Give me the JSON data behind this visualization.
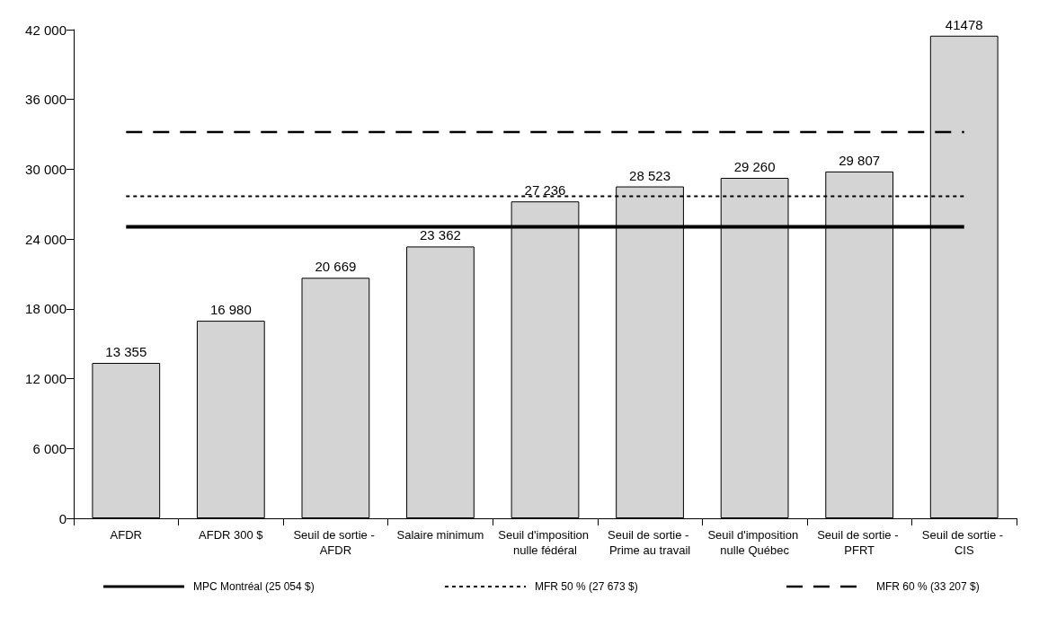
{
  "chart_data": {
    "type": "bar",
    "categories": [
      "AFDR",
      "AFDR 300 $",
      "Seuil de sortie - AFDR",
      "Salaire minimum",
      "Seuil d'imposition nulle fédéral",
      "Seuil de sortie - Prime au travail",
      "Seuil d'imposition nulle Québec",
      "Seuil de sortie - PFRT",
      "Seuil de sortie - CIS"
    ],
    "values": [
      13355,
      16980,
      20669,
      23362,
      27236,
      28523,
      29260,
      29807,
      41478
    ],
    "value_labels": [
      "13 355",
      "16 980",
      "20 669",
      "23 362",
      "27 236",
      "28 523",
      "29 260",
      "29 807",
      "41478"
    ],
    "color": "#d4d4d4",
    "ylim": [
      0,
      42000
    ],
    "yticks": [
      {
        "value": 0,
        "label": "0"
      },
      {
        "value": 6000,
        "label": "6 000"
      },
      {
        "value": 12000,
        "label": "12 000"
      },
      {
        "value": 18000,
        "label": "18 000"
      },
      {
        "value": 24000,
        "label": "24 000"
      },
      {
        "value": 30000,
        "label": "30 000"
      },
      {
        "value": 36000,
        "label": "36 000"
      },
      {
        "value": 42000,
        "label": "42 000"
      }
    ],
    "ref_lines": [
      {
        "axis": "y",
        "value": 25054,
        "label": "MPC Montréal (25 054 $)",
        "color": "#000000",
        "line_style": "solid"
      },
      {
        "axis": "y",
        "value": 27673,
        "label": "MFR 50 % (27 673 $)",
        "color": "#000000",
        "line_style": "dotted"
      },
      {
        "axis": "y",
        "value": 33207,
        "label": "MFR 60 % (33 207 $)",
        "color": "#000000",
        "line_style": "dashed"
      }
    ],
    "legend": "bottom",
    "grid": false
  }
}
